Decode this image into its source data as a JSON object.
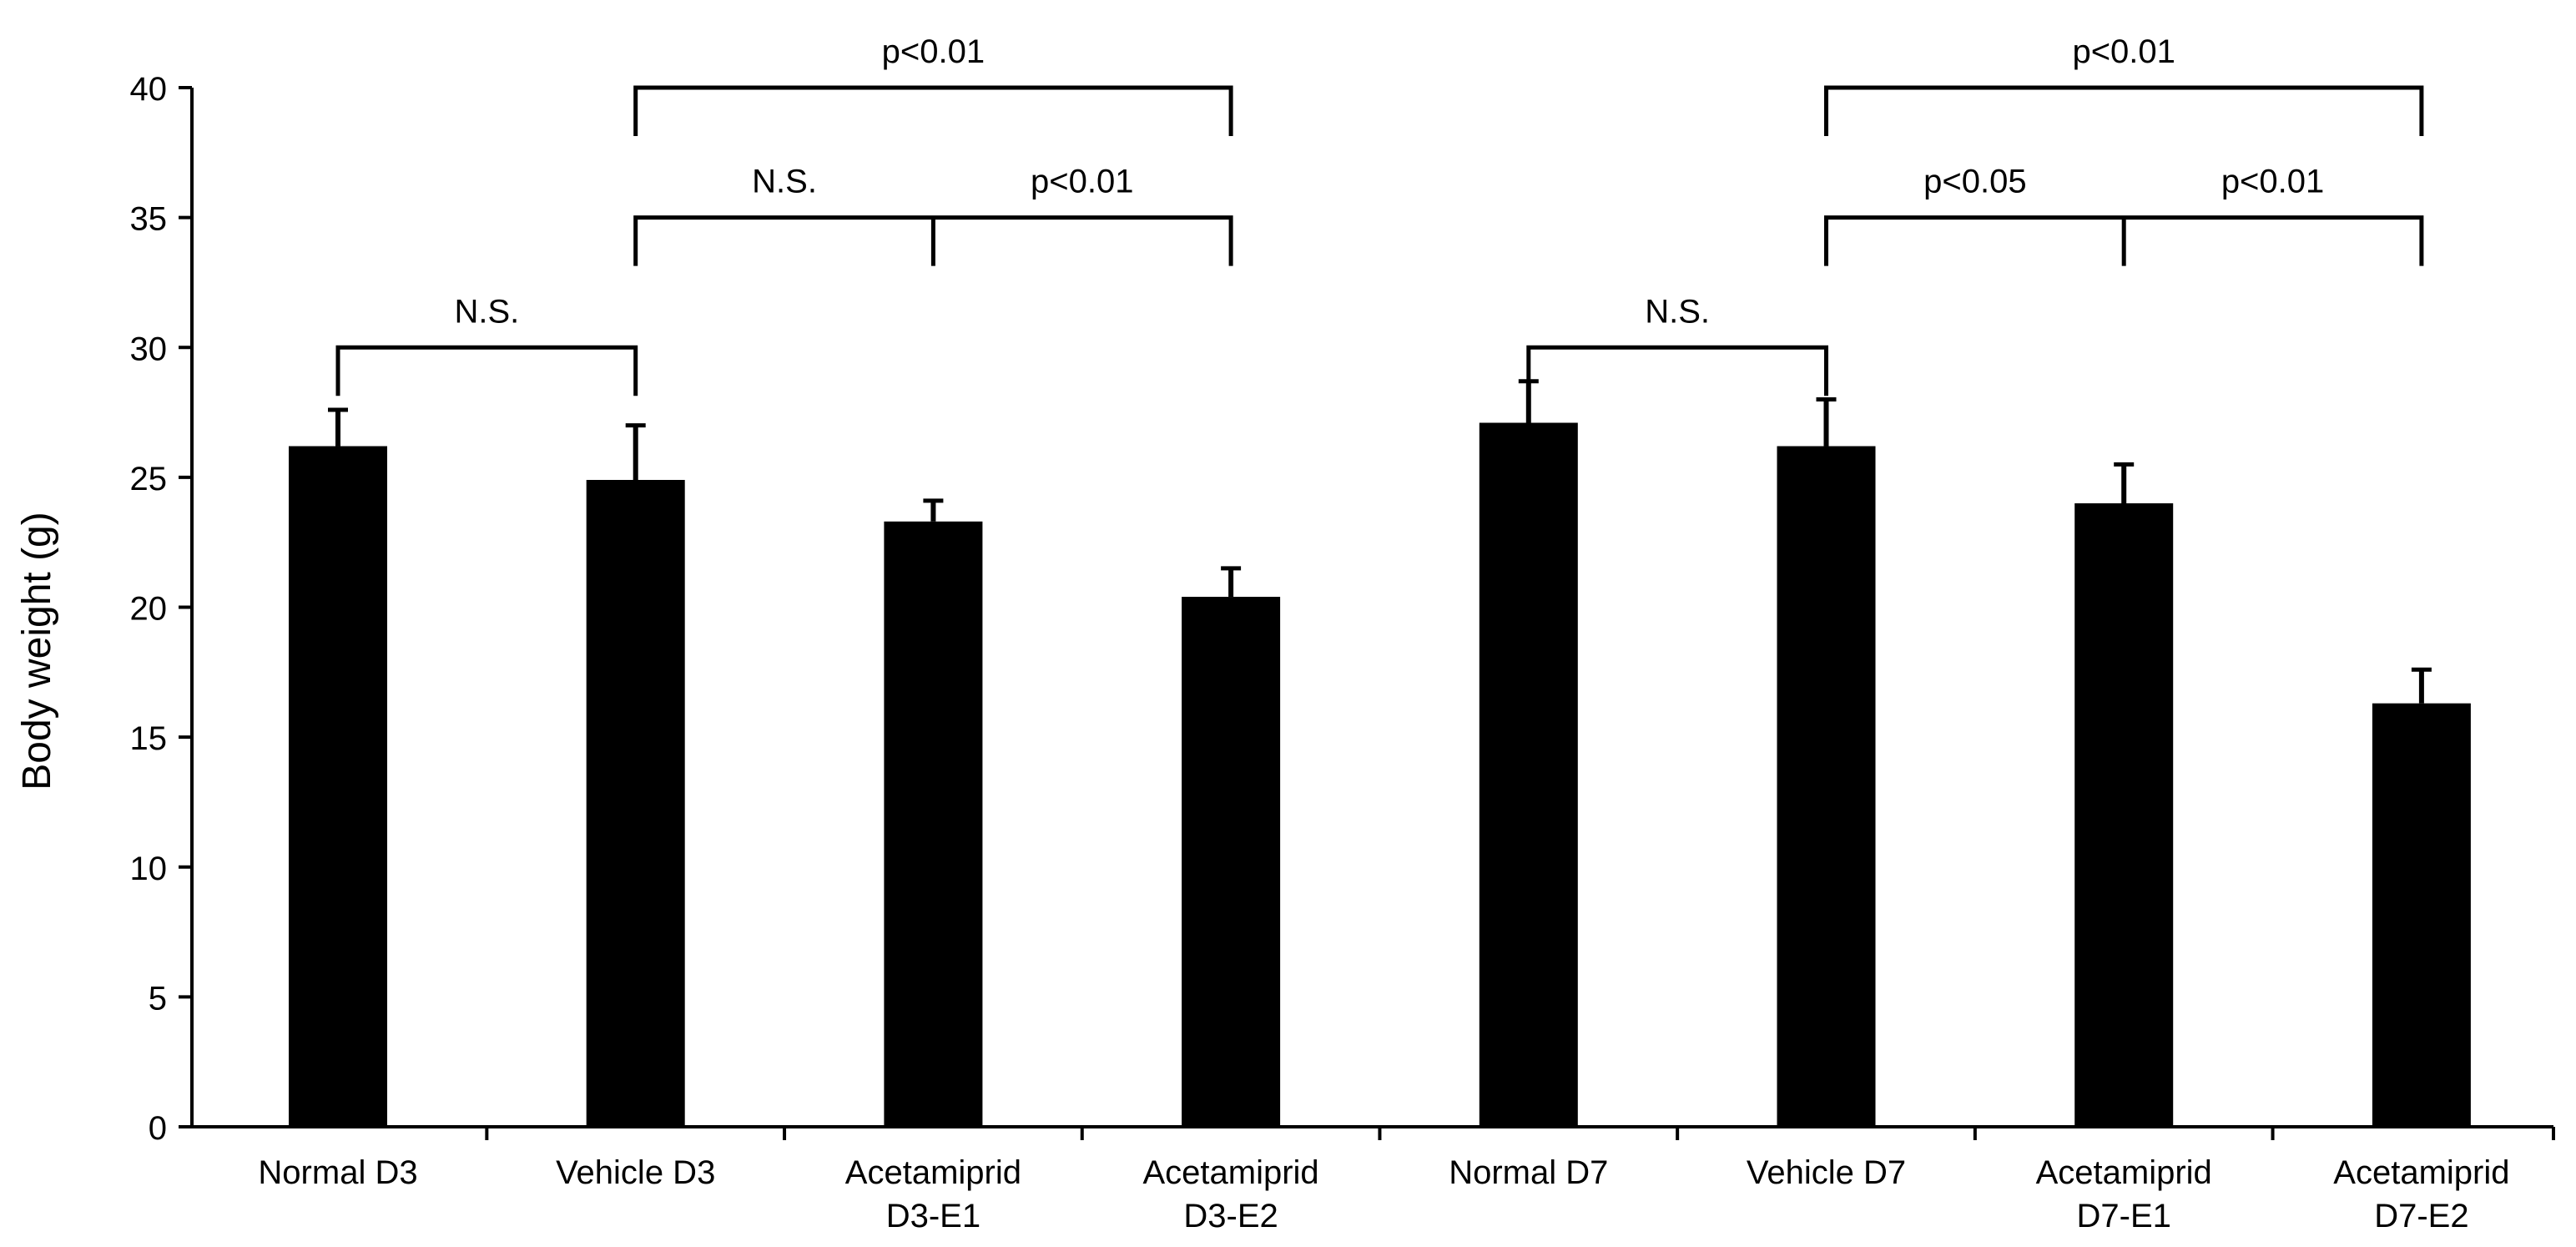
{
  "chart_data": {
    "type": "bar",
    "title": "",
    "xlabel": "",
    "ylabel": "Body weight (g)",
    "ylim": [
      0,
      40
    ],
    "yticks": [
      0,
      5,
      10,
      15,
      20,
      25,
      30,
      35,
      40
    ],
    "grid": false,
    "legend": "none",
    "bar_color": "#000000",
    "categories": [
      [
        "Normal D3"
      ],
      [
        "Vehicle D3"
      ],
      [
        "Acetamiprid",
        "D3-E1"
      ],
      [
        "Acetamiprid",
        "D3-E2"
      ],
      [
        "Normal D7"
      ],
      [
        "Vehicle D7"
      ],
      [
        "Acetamiprid",
        "D7-E1"
      ],
      [
        "Acetamiprid",
        "D7-E2"
      ]
    ],
    "series": [
      {
        "name": "Body weight",
        "values": [
          26.2,
          24.9,
          23.3,
          20.4,
          27.1,
          26.2,
          24.0,
          16.3
        ],
        "errors": [
          1.4,
          2.1,
          0.8,
          1.1,
          1.6,
          1.8,
          1.5,
          1.3
        ]
      }
    ],
    "annotations": [
      {
        "type": "bracket",
        "from": 0,
        "to": 1,
        "level": 30.0,
        "label": "N.S."
      },
      {
        "type": "tri-bracket",
        "from": 1,
        "mid": 2,
        "to": 3,
        "level": 35.0,
        "labels": [
          "N.S.",
          "p<0.01"
        ]
      },
      {
        "type": "bracket",
        "from": 1,
        "to": 3,
        "level": 40.0,
        "label": "p<0.01"
      },
      {
        "type": "bracket",
        "from": 4,
        "to": 5,
        "level": 30.0,
        "label": "N.S."
      },
      {
        "type": "tri-bracket",
        "from": 5,
        "mid": 6,
        "to": 7,
        "level": 35.0,
        "labels": [
          "p<0.05",
          "p<0.01"
        ]
      },
      {
        "type": "bracket",
        "from": 5,
        "to": 7,
        "level": 40.0,
        "label": "p<0.01"
      }
    ]
  }
}
